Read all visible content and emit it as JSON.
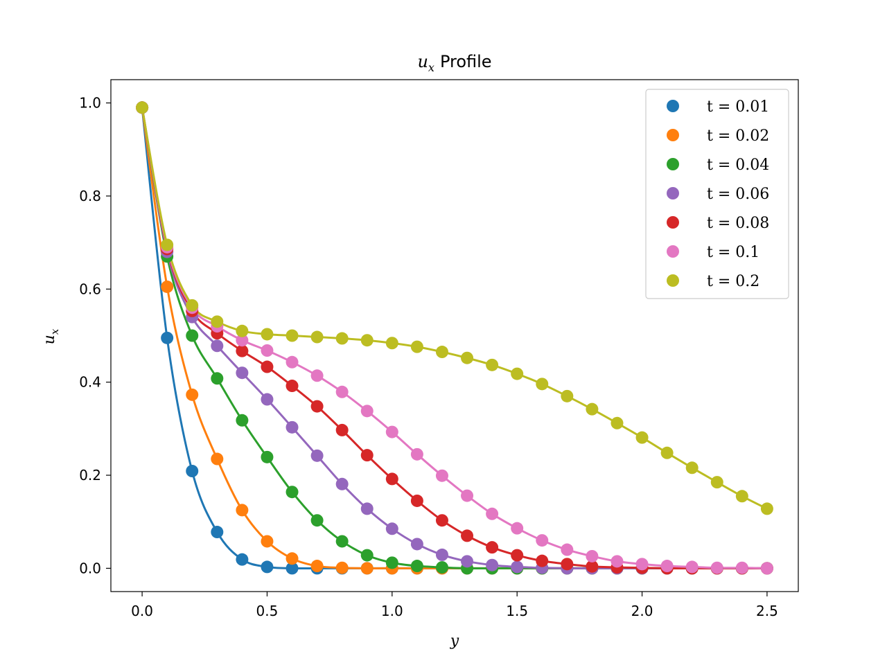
{
  "chart_data": {
    "type": "line",
    "title": "Profile",
    "title_symbol": "u",
    "title_subscript": "x",
    "xlabel": "y",
    "ylabel": "u",
    "ylabel_subscript": "x",
    "xlim": [
      -0.125,
      2.625
    ],
    "ylim": [
      -0.05,
      1.05
    ],
    "xticks": [
      0.0,
      0.5,
      1.0,
      1.5,
      2.0,
      2.5
    ],
    "xtick_labels": [
      "0.0",
      "0.5",
      "1.0",
      "1.5",
      "2.0",
      "2.5"
    ],
    "yticks": [
      0.0,
      0.2,
      0.4,
      0.6,
      0.8,
      1.0
    ],
    "ytick_labels": [
      "0.0",
      "0.2",
      "0.4",
      "0.6",
      "0.8",
      "1.0"
    ],
    "grid": false,
    "legend_position": "top-right",
    "x": [
      0.0,
      0.1,
      0.2,
      0.3,
      0.4,
      0.5,
      0.6,
      0.7,
      0.8,
      0.9,
      1.0,
      1.1,
      1.2,
      1.3,
      1.4,
      1.5,
      1.6,
      1.7,
      1.8,
      1.9,
      2.0,
      2.1,
      2.2,
      2.3,
      2.4,
      2.5
    ],
    "series": [
      {
        "name": "t = 0.01",
        "color": "#1f77b4",
        "values": [
          0.99,
          0.495,
          0.209,
          0.078,
          0.019,
          0.003,
          0.0,
          0.0,
          0.0,
          0.0,
          0.0,
          0.0,
          0.0,
          0.0,
          0.0,
          0.0,
          0.0,
          0.0,
          0.0,
          0.0,
          0.0,
          0.0,
          0.0,
          0.0,
          0.0,
          0.0
        ]
      },
      {
        "name": "t = 0.02",
        "color": "#ff7f0e",
        "values": [
          0.99,
          0.605,
          0.373,
          0.235,
          0.125,
          0.058,
          0.021,
          0.005,
          0.001,
          0.0,
          0.0,
          0.0,
          0.0,
          0.0,
          0.0,
          0.0,
          0.0,
          0.0,
          0.0,
          0.0,
          0.0,
          0.0,
          0.0,
          0.0,
          0.0,
          0.0
        ]
      },
      {
        "name": "t = 0.04",
        "color": "#2ca02c",
        "values": [
          0.99,
          0.67,
          0.5,
          0.408,
          0.318,
          0.239,
          0.164,
          0.103,
          0.058,
          0.028,
          0.012,
          0.005,
          0.002,
          0.0,
          0.0,
          0.0,
          0.0,
          0.0,
          0.0,
          0.0,
          0.0,
          0.0,
          0.0,
          0.0,
          0.0,
          0.0
        ]
      },
      {
        "name": "t = 0.06",
        "color": "#9467bd",
        "values": [
          0.99,
          0.68,
          0.54,
          0.478,
          0.42,
          0.363,
          0.303,
          0.242,
          0.181,
          0.128,
          0.085,
          0.052,
          0.029,
          0.015,
          0.007,
          0.003,
          0.001,
          0.0,
          0.0,
          0.0,
          0.0,
          0.0,
          0.0,
          0.0,
          0.0,
          0.0
        ]
      },
      {
        "name": "t = 0.08",
        "color": "#d62728",
        "values": [
          0.99,
          0.686,
          0.553,
          0.505,
          0.467,
          0.433,
          0.392,
          0.348,
          0.297,
          0.243,
          0.192,
          0.145,
          0.103,
          0.07,
          0.045,
          0.028,
          0.016,
          0.009,
          0.004,
          0.002,
          0.001,
          0.0,
          0.0,
          0.0,
          0.0,
          0.0
        ]
      },
      {
        "name": "t = 0.1",
        "color": "#e377c2",
        "values": [
          0.99,
          0.69,
          0.56,
          0.52,
          0.49,
          0.468,
          0.443,
          0.414,
          0.379,
          0.338,
          0.293,
          0.245,
          0.199,
          0.156,
          0.117,
          0.086,
          0.06,
          0.04,
          0.026,
          0.015,
          0.009,
          0.005,
          0.003,
          0.001,
          0.001,
          0.0
        ]
      },
      {
        "name": "t = 0.2",
        "color": "#bcbd22",
        "values": [
          0.99,
          0.695,
          0.565,
          0.53,
          0.51,
          0.503,
          0.5,
          0.497,
          0.494,
          0.49,
          0.484,
          0.476,
          0.465,
          0.452,
          0.437,
          0.418,
          0.396,
          0.37,
          0.342,
          0.312,
          0.281,
          0.248,
          0.216,
          0.185,
          0.155,
          0.128
        ]
      }
    ]
  }
}
